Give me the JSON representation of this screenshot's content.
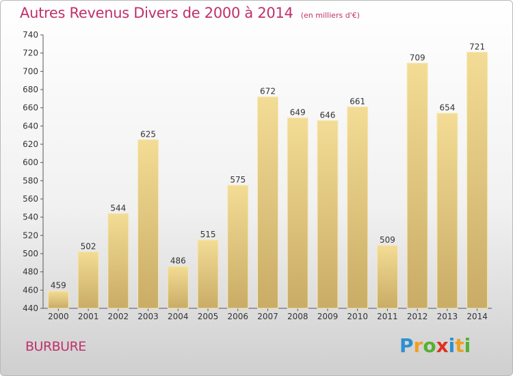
{
  "chart_data": {
    "type": "bar",
    "title": "Autres Revenus Divers de 2000 à 2014",
    "unit": "(en milliers d'€)",
    "categories": [
      "2000",
      "2001",
      "2002",
      "2003",
      "2004",
      "2005",
      "2006",
      "2007",
      "2008",
      "2009",
      "2010",
      "2011",
      "2012",
      "2013",
      "2014"
    ],
    "values": [
      459,
      502,
      544,
      625,
      486,
      515,
      575,
      672,
      649,
      646,
      661,
      509,
      709,
      654,
      721
    ],
    "ylim": [
      440,
      740
    ],
    "yticks": [
      440,
      460,
      480,
      500,
      520,
      540,
      560,
      580,
      600,
      620,
      640,
      660,
      680,
      700,
      720,
      740
    ],
    "grid": false,
    "bar_color": "#e6cd80"
  },
  "commune": "BURBURE",
  "logo": {
    "letters": [
      "P",
      "r",
      "o",
      "x",
      "i",
      "t",
      "i"
    ],
    "colors": [
      "#2f8fd0",
      "#f0a020",
      "#55b030",
      "#e03020",
      "#2f8fd0",
      "#f0a020",
      "#55b030"
    ]
  }
}
